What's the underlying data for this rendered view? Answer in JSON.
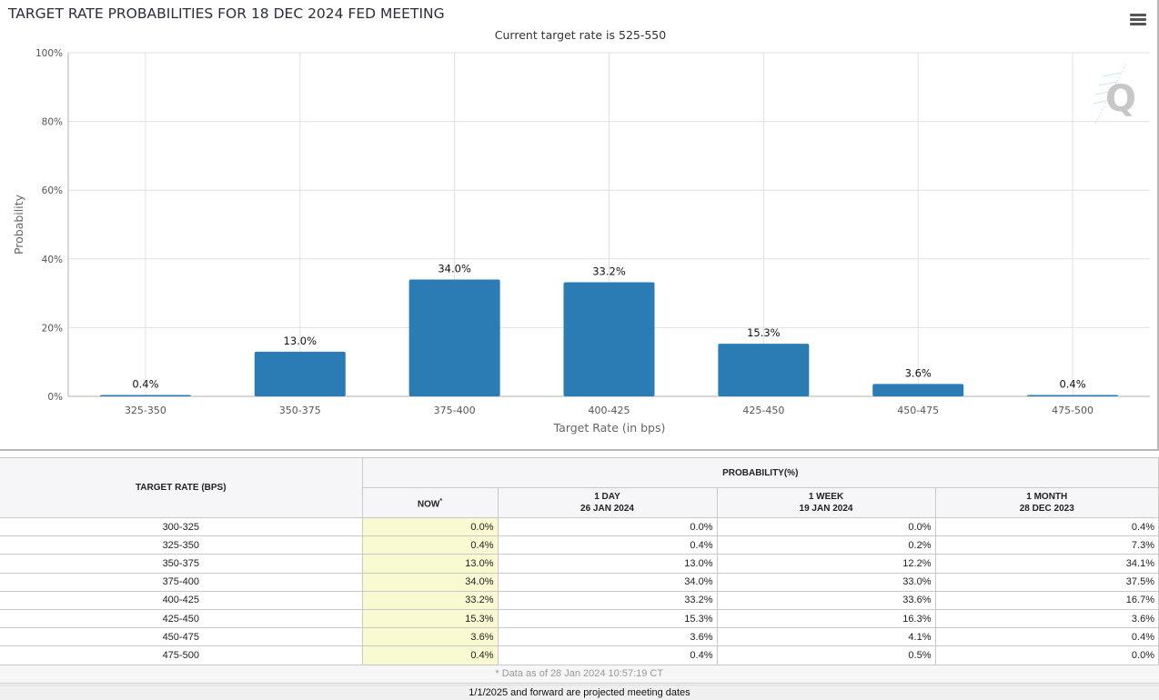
{
  "header": {
    "title": "TARGET RATE PROBABILITIES FOR 18 DEC 2024 FED MEETING",
    "menu_icon": "hamburger-menu-icon",
    "watermark_icon": "quikstrike-q-logo"
  },
  "chart_data": {
    "type": "bar",
    "title": "TARGET RATE PROBABILITIES FOR 18 DEC 2024 FED MEETING",
    "subtitle": "Current target rate is 525-550",
    "xlabel": "Target Rate (in bps)",
    "ylabel": "Probability",
    "categories": [
      "325-350",
      "350-375",
      "375-400",
      "400-425",
      "425-450",
      "450-475",
      "475-500"
    ],
    "values": [
      0.4,
      13.0,
      34.0,
      33.2,
      15.3,
      3.6,
      0.4
    ],
    "data_labels": [
      "0.4%",
      "13.0%",
      "34.0%",
      "33.2%",
      "15.3%",
      "3.6%",
      "0.4%"
    ],
    "ylim": [
      0,
      100
    ],
    "yticks": [
      0,
      20,
      40,
      60,
      80,
      100
    ],
    "ytick_labels": [
      "0%",
      "20%",
      "40%",
      "60%",
      "80%",
      "100%"
    ],
    "grid": true,
    "bar_color": "#2b7bb4",
    "legend": "none"
  },
  "table": {
    "header_rate": "TARGET RATE (BPS)",
    "header_probability": "PROBABILITY(%)",
    "columns": [
      {
        "label": "NOW",
        "marker": "*",
        "date": ""
      },
      {
        "label": "1 DAY",
        "date": "26 JAN 2024"
      },
      {
        "label": "1 WEEK",
        "date": "19 JAN 2024"
      },
      {
        "label": "1 MONTH",
        "date": "28 DEC 2023"
      }
    ],
    "rows": [
      {
        "rate": "300-325",
        "now": "0.0%",
        "day": "0.0%",
        "week": "0.0%",
        "month": "0.4%"
      },
      {
        "rate": "325-350",
        "now": "0.4%",
        "day": "0.4%",
        "week": "0.2%",
        "month": "7.3%"
      },
      {
        "rate": "350-375",
        "now": "13.0%",
        "day": "13.0%",
        "week": "12.2%",
        "month": "34.1%"
      },
      {
        "rate": "375-400",
        "now": "34.0%",
        "day": "34.0%",
        "week": "33.0%",
        "month": "37.5%"
      },
      {
        "rate": "400-425",
        "now": "33.2%",
        "day": "33.2%",
        "week": "33.6%",
        "month": "16.7%"
      },
      {
        "rate": "425-450",
        "now": "15.3%",
        "day": "15.3%",
        "week": "16.3%",
        "month": "3.6%"
      },
      {
        "rate": "450-475",
        "now": "3.6%",
        "day": "3.6%",
        "week": "4.1%",
        "month": "0.4%"
      },
      {
        "rate": "475-500",
        "now": "0.4%",
        "day": "0.4%",
        "week": "0.5%",
        "month": "0.0%"
      }
    ],
    "highlight_color": "#fafad2",
    "footnote": "* Data as of 28 Jan 2024 10:57:19 CT"
  },
  "projected_note": "1/1/2025 and forward are projected meeting dates"
}
